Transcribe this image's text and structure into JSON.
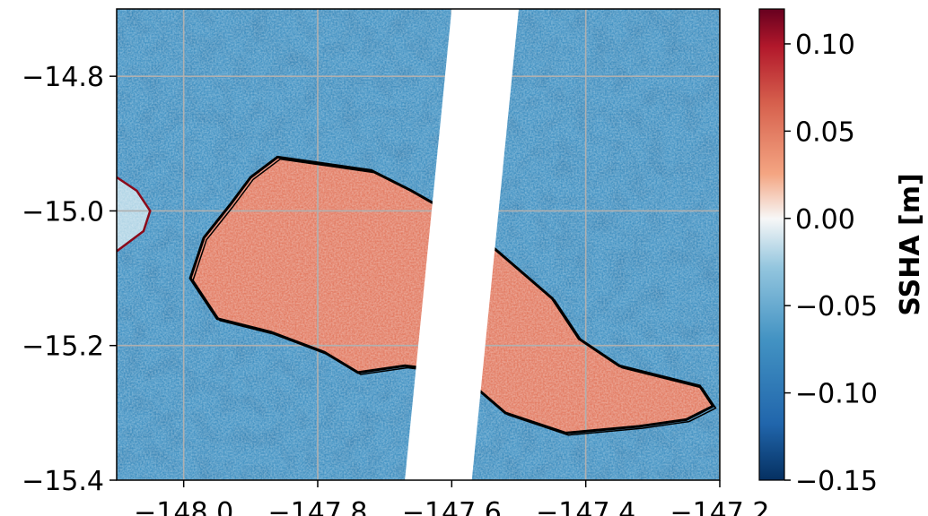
{
  "chart_data": {
    "type": "heatmap",
    "title": "",
    "xlabel": "",
    "ylabel": "",
    "xlim": [
      -148.1,
      -147.2
    ],
    "ylim": [
      -15.4,
      -14.7
    ],
    "x_ticks": [
      -148.0,
      -147.8,
      -147.6,
      -147.4,
      -147.2
    ],
    "x_tick_labels": [
      "−148.0",
      "−147.8",
      "−147.6",
      "−147.4",
      "−147.2"
    ],
    "y_ticks": [
      -14.8,
      -15.0,
      -15.2,
      -15.4
    ],
    "y_tick_labels": [
      "−14.8",
      "−15.0",
      "−15.2",
      "−15.4"
    ],
    "grid": true,
    "colorbar": {
      "label": "SSHA [m]",
      "range": [
        -0.15,
        0.12
      ],
      "ticks": [
        0.1,
        0.05,
        0.0,
        -0.05,
        -0.1,
        -0.15
      ],
      "tick_labels": [
        "0.10",
        "0.05",
        "0.00",
        "−0.05",
        "−0.10",
        "−0.15"
      ],
      "colormap": "RdBu_r"
    },
    "fields": [
      {
        "region": "ocean",
        "ssha_m": -0.07
      },
      {
        "region": "lagoon",
        "ssha_m": 0.05
      },
      {
        "region": "west-lagoon-edge",
        "ssha_m": -0.02
      }
    ],
    "lagoon_outline": [
      [
        -147.86,
        -14.92
      ],
      [
        -147.72,
        -14.94
      ],
      [
        -147.66,
        -14.97
      ],
      [
        -147.59,
        -15.01
      ],
      [
        -147.52,
        -15.07
      ],
      [
        -147.45,
        -15.13
      ],
      [
        -147.41,
        -15.19
      ],
      [
        -147.35,
        -15.23
      ],
      [
        -147.23,
        -15.26
      ],
      [
        -147.21,
        -15.29
      ],
      [
        -147.25,
        -15.31
      ],
      [
        -147.32,
        -15.32
      ],
      [
        -147.43,
        -15.33
      ],
      [
        -147.52,
        -15.3
      ],
      [
        -147.59,
        -15.24
      ],
      [
        -147.67,
        -15.23
      ],
      [
        -147.74,
        -15.24
      ],
      [
        -147.79,
        -15.21
      ],
      [
        -147.87,
        -15.18
      ],
      [
        -147.95,
        -15.16
      ],
      [
        -147.99,
        -15.1
      ],
      [
        -147.97,
        -15.04
      ],
      [
        -147.93,
        -14.99
      ],
      [
        -147.9,
        -14.95
      ]
    ],
    "west_island_outline": [
      [
        -148.1,
        -14.95
      ],
      [
        -148.07,
        -14.97
      ],
      [
        -148.05,
        -15.0
      ],
      [
        -148.06,
        -15.03
      ],
      [
        -148.1,
        -15.06
      ]
    ],
    "data_gap_swath": [
      [
        -147.6,
        -14.7
      ],
      [
        -147.5,
        -14.7
      ],
      [
        -147.57,
        -15.4
      ],
      [
        -147.67,
        -15.4
      ]
    ],
    "colors": {
      "ocean": "#3f76ab",
      "lagoon": "#e3947b",
      "gap": "#ffffff",
      "outline": "#000000",
      "grid": "#b0b0b0"
    }
  }
}
